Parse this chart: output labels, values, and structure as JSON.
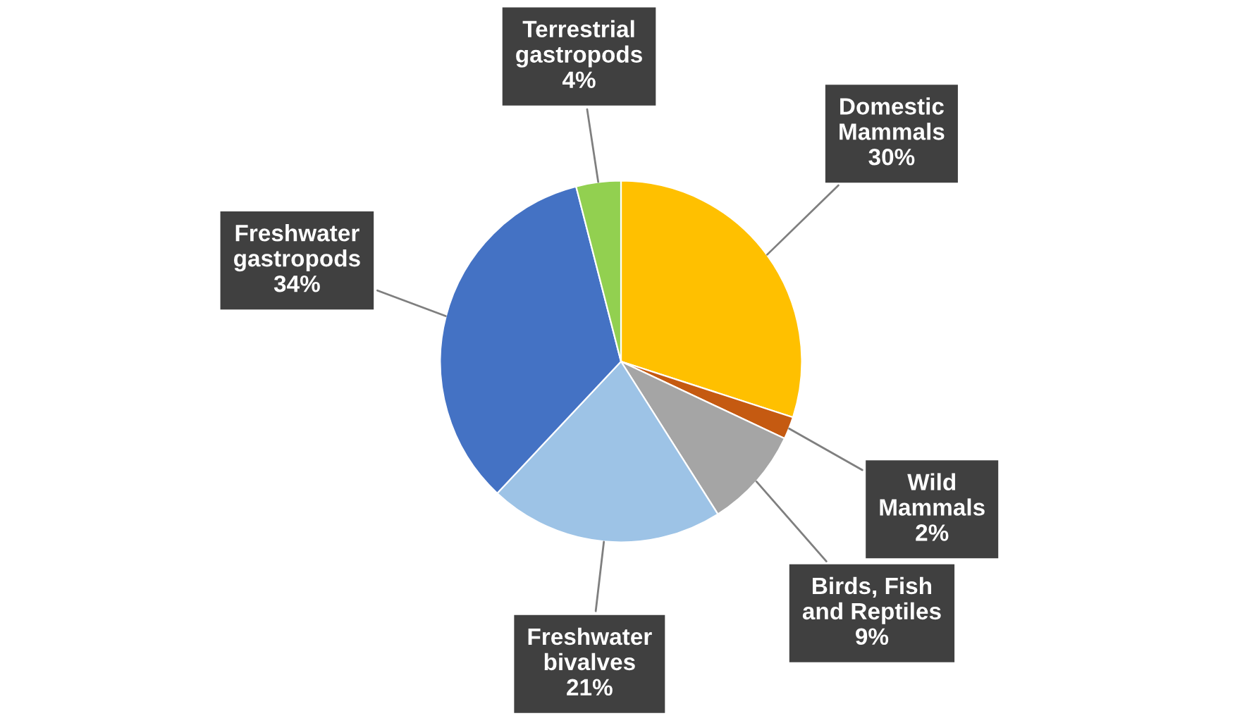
{
  "chart_data": {
    "type": "pie",
    "categories": [
      "Domestic Mammals",
      "Wild Mammals",
      "Birds, Fish and Reptiles",
      "Freshwater bivalves",
      "Freshwater gastropods",
      "Terrestrial gastropods"
    ],
    "values": [
      30,
      2,
      9,
      21,
      34,
      4
    ],
    "colors": [
      "#ffc000",
      "#c55a11",
      "#a5a5a5",
      "#9dc3e6",
      "#4472c4",
      "#92d050"
    ],
    "value_labels": [
      "30%",
      "2%",
      "9%",
      "21%",
      "34%",
      "4%"
    ],
    "legend": false
  }
}
